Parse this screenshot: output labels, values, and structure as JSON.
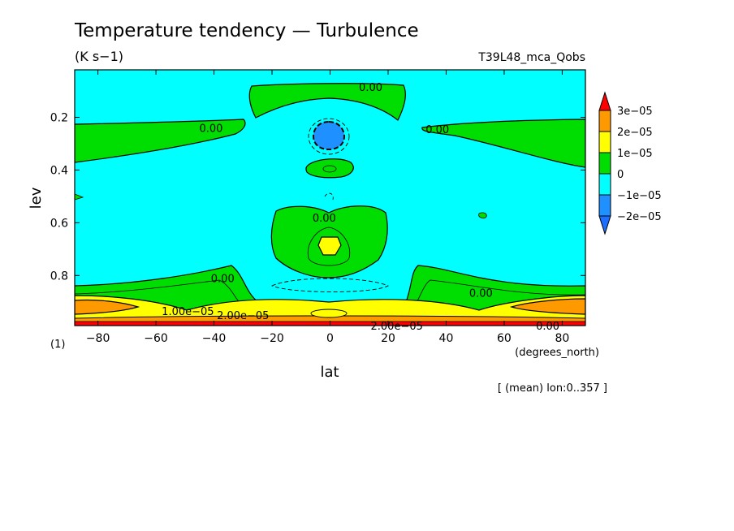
{
  "chart_data": {
    "type": "heatmap",
    "title": "Temperature tendency — Turbulence",
    "units": "(K s−1)",
    "run_name": "T39L48_mca_Qobs",
    "xlabel": "lat",
    "xunits": "(degrees_north)",
    "ylabel": "lev",
    "yunits": "(1)",
    "footnote": "[ (mean) lon:0..357 ]",
    "xlim": [
      -88,
      88
    ],
    "ylim": [
      0.02,
      0.99
    ],
    "y_inverted": true,
    "x_ticks": [
      -80,
      -60,
      -40,
      -20,
      0,
      20,
      40,
      60,
      80
    ],
    "x_tick_labels": [
      "−80",
      "−60",
      "−40",
      "−20",
      "0",
      "20",
      "40",
      "60",
      "80"
    ],
    "y_ticks": [
      0.2,
      0.4,
      0.6,
      0.8
    ],
    "y_tick_labels": [
      "0.2",
      "0.4",
      "0.6",
      "0.8"
    ],
    "colorbar": {
      "levels": [
        "3e−05",
        "2e−05",
        "1e−05",
        "0",
        "−1e−05",
        "−2e−05"
      ],
      "colors": [
        "#ff0000",
        "#ff9900",
        "#ffff00",
        "#00dd00",
        "#00ffff",
        "#1e90ff",
        "#1e6fff"
      ],
      "colors_order": "top_to_bottom"
    },
    "fill_colors": {
      "positive_1": "#00dd00",
      "positive_2": "#ffff00",
      "positive_3": "#ff9900",
      "positive_4": "#ff0000",
      "negative_1": "#00ffff",
      "negative_2": "#1e90ff"
    },
    "contour_labels": [
      {
        "text": "0.00",
        "lat": 14,
        "lev": 0.085
      },
      {
        "text": "0.00",
        "lat": -41,
        "lev": 0.24
      },
      {
        "text": "0.00",
        "lat": 37,
        "lev": 0.245
      },
      {
        "text": "0.00",
        "lat": -2,
        "lev": 0.58
      },
      {
        "text": "0.00",
        "lat": -37,
        "lev": 0.81
      },
      {
        "text": "0.00",
        "lat": 52,
        "lev": 0.865
      },
      {
        "text": "1.00e−05",
        "lat": -49,
        "lev": 0.935
      },
      {
        "text": "2.00e−05",
        "lat": -30,
        "lev": 0.95
      },
      {
        "text": "2.00e−05",
        "lat": 23,
        "lev": 0.99
      },
      {
        "text": "0.00",
        "lat": 75,
        "lev": 0.99
      }
    ],
    "regions": [
      {
        "name": "upper-green-center",
        "sign": "positive",
        "level": 1,
        "lat": [
          -27,
          25
        ],
        "lev": [
          0.06,
          0.19
        ]
      },
      {
        "name": "upper-green-left",
        "sign": "positive",
        "level": 1,
        "lat": [
          -88,
          -25
        ],
        "lev": [
          0.19,
          0.35
        ]
      },
      {
        "name": "upper-green-right",
        "sign": "positive",
        "level": 1,
        "lat": [
          32,
          88
        ],
        "lev": [
          0.19,
          0.35
        ]
      },
      {
        "name": "negative-blue-core",
        "sign": "negative",
        "level": 2,
        "lat": [
          -4,
          4
        ],
        "lev": [
          0.21,
          0.3
        ]
      },
      {
        "name": "small-green-blob",
        "sign": "positive",
        "level": 1,
        "lat": [
          -7,
          7
        ],
        "lev": [
          0.36,
          0.43
        ]
      },
      {
        "name": "middle-green",
        "sign": "positive",
        "level": 1,
        "lat": [
          -20,
          20
        ],
        "lev": [
          0.55,
          0.8
        ]
      },
      {
        "name": "yellow-core",
        "sign": "positive",
        "level": 2,
        "lat": [
          -4,
          4
        ],
        "lev": [
          0.66,
          0.74
        ]
      },
      {
        "name": "lower-green-left",
        "sign": "positive",
        "level": 1,
        "lat": [
          -88,
          -14
        ],
        "lev": [
          0.8,
          0.99
        ]
      },
      {
        "name": "lower-green-right",
        "sign": "positive",
        "level": 1,
        "lat": [
          15,
          88
        ],
        "lev": [
          0.8,
          0.99
        ]
      },
      {
        "name": "surface-yellow",
        "sign": "positive",
        "level": 2,
        "lat": [
          -88,
          88
        ],
        "lev": [
          0.91,
          0.99
        ]
      },
      {
        "name": "surface-orange",
        "sign": "positive",
        "level": 3,
        "lat": [
          -88,
          88
        ],
        "lev": [
          0.94,
          0.99
        ]
      },
      {
        "name": "surface-red",
        "sign": "positive",
        "level": 4,
        "lat": [
          -88,
          88
        ],
        "lev": [
          0.975,
          0.99
        ]
      }
    ]
  }
}
